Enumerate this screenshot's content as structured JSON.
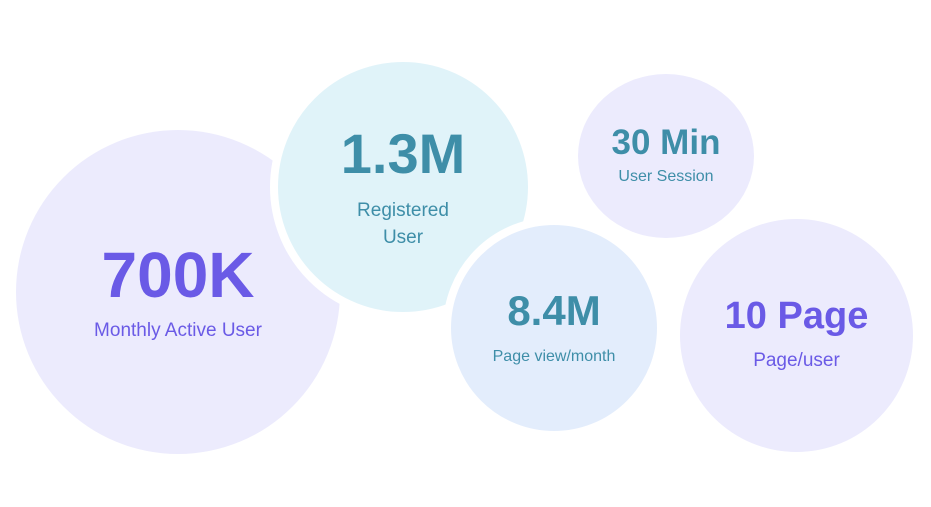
{
  "stats": [
    {
      "value": "700K",
      "label": "Monthly Active User",
      "bg": "#ecebfd",
      "color": "#6a5ae6"
    },
    {
      "value": "1.3M",
      "label": "Registered User",
      "bg": "#e0f3f9",
      "color": "#3e8ea8"
    },
    {
      "value": "30 Min",
      "label": "User Session",
      "bg": "#ecebfd",
      "color": "#3e8ea8"
    },
    {
      "value": "8.4M",
      "label": "Page view/month",
      "bg": "#e3edfc",
      "color": "#3e8ea8"
    },
    {
      "value": "10 Page",
      "label": "Page/user",
      "bg": "#ecebfd",
      "color": "#6a5ae6"
    }
  ]
}
